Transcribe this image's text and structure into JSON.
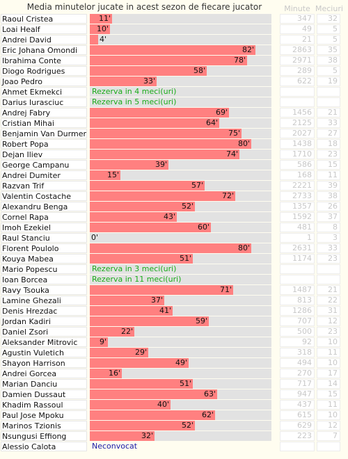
{
  "chart_data": {
    "type": "bar",
    "title": "Media minutelor jucate in acest sezon de fiecare jucator",
    "columns": {
      "minutes": "Minute",
      "apps": "Meciuri"
    },
    "xlim": [
      0,
      90
    ],
    "value_suffix": "'",
    "players": [
      {
        "name": "Raoul Cristea",
        "avg": 11,
        "label": "11'",
        "minutes": "347",
        "apps": "32"
      },
      {
        "name": "Loai Healf",
        "avg": 10,
        "label": "10'",
        "minutes": "49",
        "apps": "5"
      },
      {
        "name": "Andrei David",
        "avg": 4,
        "label": "4'",
        "minutes": "21",
        "apps": "5"
      },
      {
        "name": "Eric Johana Omondi",
        "avg": 82,
        "label": "82'",
        "minutes": "2863",
        "apps": "35"
      },
      {
        "name": "Ibrahima Conte",
        "avg": 78,
        "label": "78'",
        "minutes": "2971",
        "apps": "38"
      },
      {
        "name": "Diogo Rodrigues",
        "avg": 58,
        "label": "58'",
        "minutes": "289",
        "apps": "5"
      },
      {
        "name": "Joao Pedro",
        "avg": 33,
        "label": "33'",
        "minutes": "622",
        "apps": "19"
      },
      {
        "name": "Ahmet Ekmekci",
        "avg": null,
        "note": "Rezerva in 4 meci(uri)",
        "note_type": "rezerva",
        "minutes": "",
        "apps": ""
      },
      {
        "name": "Darius Iurasciuc",
        "avg": null,
        "note": "Rezerva in 5 meci(uri)",
        "note_type": "rezerva",
        "minutes": "",
        "apps": ""
      },
      {
        "name": "Andrej Fabry",
        "avg": 69,
        "label": "69'",
        "minutes": "1456",
        "apps": "21"
      },
      {
        "name": "Cristian Mihai",
        "avg": 64,
        "label": "64'",
        "minutes": "2125",
        "apps": "33"
      },
      {
        "name": "Benjamin Van Durmen",
        "avg": 75,
        "label": "75'",
        "minutes": "2027",
        "apps": "27"
      },
      {
        "name": "Robert Popa",
        "avg": 80,
        "label": "80'",
        "minutes": "1438",
        "apps": "18"
      },
      {
        "name": "Dejan Iliev",
        "avg": 74,
        "label": "74'",
        "minutes": "1710",
        "apps": "23"
      },
      {
        "name": "George Campanu",
        "avg": 39,
        "label": "39'",
        "minutes": "586",
        "apps": "15"
      },
      {
        "name": "Andrei Dumiter",
        "avg": 15,
        "label": "15'",
        "minutes": "168",
        "apps": "11"
      },
      {
        "name": "Razvan Trif",
        "avg": 57,
        "label": "57'",
        "minutes": "2221",
        "apps": "39"
      },
      {
        "name": "Valentin Costache",
        "avg": 72,
        "label": "72'",
        "minutes": "2733",
        "apps": "38"
      },
      {
        "name": "Alexandru Benga",
        "avg": 52,
        "label": "52'",
        "minutes": "1357",
        "apps": "26"
      },
      {
        "name": "Cornel Rapa",
        "avg": 43,
        "label": "43'",
        "minutes": "1592",
        "apps": "37"
      },
      {
        "name": "Imoh Ezekiel",
        "avg": 60,
        "label": "60'",
        "minutes": "481",
        "apps": "8"
      },
      {
        "name": "Raul Stanciu",
        "avg": 0,
        "label": "0'",
        "minutes": "1",
        "apps": "3"
      },
      {
        "name": "Florent Poulolo",
        "avg": 80,
        "label": "80'",
        "minutes": "2631",
        "apps": "33"
      },
      {
        "name": "Kouya Mabea",
        "avg": 51,
        "label": "51'",
        "minutes": "1174",
        "apps": "23"
      },
      {
        "name": "Mario Popescu",
        "avg": null,
        "note": "Rezerva in 3 meci(uri)",
        "note_type": "rezerva",
        "minutes": "",
        "apps": ""
      },
      {
        "name": "Ioan Borcea",
        "avg": null,
        "note": "Rezerva in 11 meci(uri)",
        "note_type": "rezerva",
        "minutes": "",
        "apps": ""
      },
      {
        "name": "Ravy Tsouka",
        "avg": 71,
        "label": "71'",
        "minutes": "1487",
        "apps": "21"
      },
      {
        "name": "Lamine Ghezali",
        "avg": 37,
        "label": "37'",
        "minutes": "813",
        "apps": "22"
      },
      {
        "name": "Denis Hrezdac",
        "avg": 41,
        "label": "41'",
        "minutes": "1286",
        "apps": "31"
      },
      {
        "name": "Jordan Kadiri",
        "avg": 59,
        "label": "59'",
        "minutes": "707",
        "apps": "12"
      },
      {
        "name": "Daniel Zsori",
        "avg": 22,
        "label": "22'",
        "minutes": "500",
        "apps": "23"
      },
      {
        "name": "Aleksander Mitrovic",
        "avg": 9,
        "label": "9'",
        "minutes": "92",
        "apps": "10"
      },
      {
        "name": "Agustin Vuletich",
        "avg": 29,
        "label": "29'",
        "minutes": "318",
        "apps": "11"
      },
      {
        "name": "Shayon Harrison",
        "avg": 49,
        "label": "49'",
        "minutes": "494",
        "apps": "10"
      },
      {
        "name": "Andrei Gorcea",
        "avg": 16,
        "label": "16'",
        "minutes": "270",
        "apps": "17"
      },
      {
        "name": "Marian Danciu",
        "avg": 51,
        "label": "51'",
        "minutes": "717",
        "apps": "14"
      },
      {
        "name": "Damien Dussaut",
        "avg": 63,
        "label": "63'",
        "minutes": "947",
        "apps": "15"
      },
      {
        "name": "Khadim Rassoul",
        "avg": 40,
        "label": "40'",
        "minutes": "437",
        "apps": "11"
      },
      {
        "name": "Paul Jose Mpoku",
        "avg": 62,
        "label": "62'",
        "minutes": "615",
        "apps": "10"
      },
      {
        "name": "Marinos Tzionis",
        "avg": 52,
        "label": "52'",
        "minutes": "629",
        "apps": "12"
      },
      {
        "name": "Nsungusi Effiong",
        "avg": 32,
        "label": "32'",
        "minutes": "223",
        "apps": "7"
      },
      {
        "name": "Alessio Calota",
        "avg": null,
        "note": "Neconvocat",
        "note_type": "neconvocat",
        "minutes": "",
        "apps": ""
      }
    ]
  },
  "colors": {
    "bar": "#ff8080",
    "track": "#e2e2e2",
    "rezerva_text": "#1aab1a",
    "neconvocat_text": "#1a1aa8",
    "muted_text": "#c8c8c8",
    "background": "#fffdf0"
  }
}
